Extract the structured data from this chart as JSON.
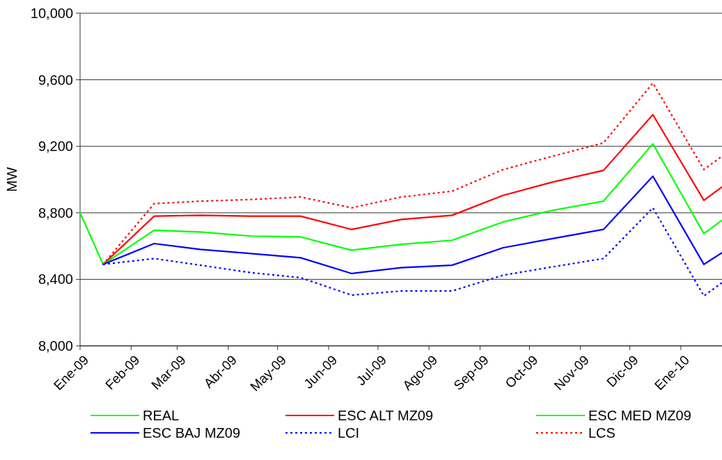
{
  "chart_data": {
    "type": "line",
    "ylabel": "MW",
    "xlim": [
      "2009-01-01",
      "2010-01-26"
    ],
    "xticks": [
      {
        "value": "2009-01-01",
        "label": "Ene-09"
      },
      {
        "value": "2009-02-01",
        "label": "Feb-09"
      },
      {
        "value": "2009-03-01",
        "label": "Mar-09"
      },
      {
        "value": "2009-04-01",
        "label": "Abr-09"
      },
      {
        "value": "2009-05-01",
        "label": "May-09"
      },
      {
        "value": "2009-06-01",
        "label": "Jun-09"
      },
      {
        "value": "2009-07-01",
        "label": "Jul-09"
      },
      {
        "value": "2009-08-01",
        "label": "Ago-09"
      },
      {
        "value": "2009-09-01",
        "label": "Sep-09"
      },
      {
        "value": "2009-10-01",
        "label": "Oct-09"
      },
      {
        "value": "2009-11-01",
        "label": "Nov-09"
      },
      {
        "value": "2009-12-01",
        "label": "Dic-09"
      },
      {
        "value": "2010-01-01",
        "label": "Ene-10"
      }
    ],
    "x": [
      "2009-01-15",
      "2009-02-15",
      "2009-03-15",
      "2009-04-15",
      "2009-05-15",
      "2009-06-15",
      "2009-07-15",
      "2009-08-15",
      "2009-09-15",
      "2009-10-15",
      "2009-11-15",
      "2009-12-15",
      "2010-01-15",
      "2010-01-26"
    ],
    "ylim": [
      8000,
      10000
    ],
    "yticks": [
      {
        "value": 8000,
        "label": "8,000"
      },
      {
        "value": 8400,
        "label": "8,400"
      },
      {
        "value": 8800,
        "label": "8,800"
      },
      {
        "value": 9200,
        "label": "9,200"
      },
      {
        "value": 9600,
        "label": "9,600"
      },
      {
        "value": 10000,
        "label": "10,000"
      }
    ],
    "grid": "y",
    "legend": "bottom",
    "marker": "none",
    "series": [
      {
        "name": "REAL",
        "color": "#00ff00",
        "x": [
          "2009-01-01",
          "2009-01-15"
        ],
        "values": [
          8800,
          8490
        ]
      },
      {
        "name": "ESC ALT MZ09",
        "color": "#ff0000",
        "values": [
          8490,
          8780,
          8785,
          8780,
          8780,
          8700,
          8760,
          8785,
          8905,
          8985,
          9055,
          9390,
          8875,
          8955
        ]
      },
      {
        "name": "ESC MED MZ09",
        "color": "#00ff00",
        "values": [
          8490,
          8695,
          8685,
          8660,
          8655,
          8575,
          8610,
          8635,
          8745,
          8815,
          8870,
          9215,
          8675,
          8755
        ]
      },
      {
        "name": "ESC BAJ MZ09",
        "color": "#0000ff",
        "values": [
          8490,
          8615,
          8580,
          8555,
          8530,
          8435,
          8470,
          8485,
          8590,
          8645,
          8700,
          9020,
          8490,
          8560
        ]
      },
      {
        "name": "LCI",
        "color": "#0000ff",
        "line_style": "dotted",
        "values": [
          8490,
          8525,
          8485,
          8440,
          8410,
          8305,
          8330,
          8330,
          8425,
          8475,
          8525,
          8830,
          8300,
          8380
        ]
      },
      {
        "name": "LCS",
        "color": "#ff0000",
        "line_style": "dotted",
        "values": [
          8490,
          8855,
          8870,
          8880,
          8895,
          8830,
          8895,
          8930,
          9060,
          9140,
          9220,
          9580,
          9060,
          9140
        ]
      }
    ]
  }
}
